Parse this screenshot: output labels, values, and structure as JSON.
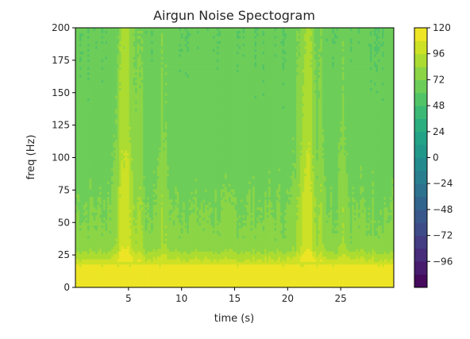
{
  "chart_data": {
    "type": "heatmap",
    "title": "Airgun Noise Spectogram",
    "xlabel": "time (s)",
    "ylabel": "freq (Hz)",
    "xlim": [
      0,
      30
    ],
    "ylim": [
      0,
      200
    ],
    "xticks": [
      5,
      10,
      15,
      20,
      25
    ],
    "xtick_labels": [
      "5",
      "10",
      "15",
      "20",
      "25"
    ],
    "yticks": [
      0,
      25,
      50,
      75,
      100,
      125,
      150,
      175,
      200
    ],
    "ytick_labels": [
      "0",
      "25",
      "50",
      "75",
      "100",
      "125",
      "150",
      "175",
      "200"
    ],
    "colormap": "viridis",
    "colorbar": {
      "min": -120,
      "max": 120,
      "ticks": [
        120,
        96,
        72,
        48,
        24,
        0,
        -24,
        -48,
        -72,
        -96
      ],
      "tick_labels": [
        "120",
        "96",
        "72",
        "48",
        "24",
        "0",
        "−24",
        "−48",
        "−72",
        "−96"
      ]
    },
    "baseline_profile": {
      "freq": [
        0,
        16,
        18,
        20,
        22,
        26,
        30,
        35,
        45,
        60,
        80,
        100,
        130,
        160,
        200
      ],
      "level": [
        118,
        118,
        105,
        100,
        96,
        88,
        80,
        76,
        74,
        72,
        69,
        67,
        65,
        64,
        62
      ]
    },
    "bursts": [
      {
        "time": 4.7,
        "width": 0.8,
        "gain": 34
      },
      {
        "time": 6.0,
        "width": 0.35,
        "gain": 16
      },
      {
        "time": 8.2,
        "width": 0.5,
        "gain": 10
      },
      {
        "time": 21.8,
        "width": 0.8,
        "gain": 34
      },
      {
        "time": 23.1,
        "width": 0.4,
        "gain": 14
      },
      {
        "time": 25.2,
        "width": 0.4,
        "gain": 12
      }
    ]
  }
}
